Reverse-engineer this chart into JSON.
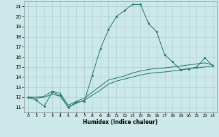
{
  "title": "",
  "xlabel": "Humidex (Indice chaleur)",
  "xlim": [
    -0.5,
    23.5
  ],
  "ylim": [
    10.5,
    21.5
  ],
  "yticks": [
    11,
    12,
    13,
    14,
    15,
    16,
    17,
    18,
    19,
    20,
    21
  ],
  "xticks": [
    0,
    1,
    2,
    3,
    4,
    5,
    6,
    7,
    8,
    9,
    10,
    11,
    12,
    13,
    14,
    15,
    16,
    17,
    18,
    19,
    20,
    21,
    22,
    23
  ],
  "background_color": "#cce8e8",
  "grid_color": "#aacfcf",
  "line_color": "#1a7060",
  "line1_x": [
    0,
    1,
    2,
    3,
    4,
    5,
    6,
    7,
    8,
    9,
    10,
    11,
    12,
    13,
    14,
    15,
    16,
    17,
    18,
    19,
    20,
    21,
    22,
    23
  ],
  "line1_y": [
    12.0,
    11.7,
    11.1,
    12.5,
    12.2,
    11.0,
    11.5,
    11.6,
    14.2,
    16.8,
    18.7,
    20.0,
    20.6,
    21.2,
    21.2,
    19.3,
    18.5,
    16.2,
    15.5,
    14.7,
    14.8,
    15.0,
    15.9,
    15.1
  ],
  "line2_x": [
    0,
    1,
    2,
    3,
    4,
    5,
    6,
    7,
    8,
    9,
    10,
    11,
    12,
    13,
    14,
    15,
    16,
    17,
    18,
    19,
    20,
    21,
    22,
    23
  ],
  "line2_y": [
    12.0,
    11.9,
    12.0,
    12.3,
    12.1,
    11.0,
    11.4,
    11.7,
    12.2,
    12.7,
    13.3,
    13.6,
    13.8,
    14.0,
    14.2,
    14.35,
    14.45,
    14.5,
    14.6,
    14.7,
    14.85,
    14.9,
    15.0,
    15.1
  ],
  "line3_x": [
    0,
    1,
    2,
    3,
    4,
    5,
    6,
    7,
    8,
    9,
    10,
    11,
    12,
    13,
    14,
    15,
    16,
    17,
    18,
    19,
    20,
    21,
    22,
    23
  ],
  "line3_y": [
    12.0,
    12.0,
    12.1,
    12.6,
    12.4,
    11.2,
    11.6,
    11.9,
    12.5,
    13.1,
    13.7,
    13.9,
    14.1,
    14.4,
    14.6,
    14.75,
    14.85,
    14.9,
    15.0,
    15.1,
    15.2,
    15.3,
    15.4,
    15.2
  ]
}
